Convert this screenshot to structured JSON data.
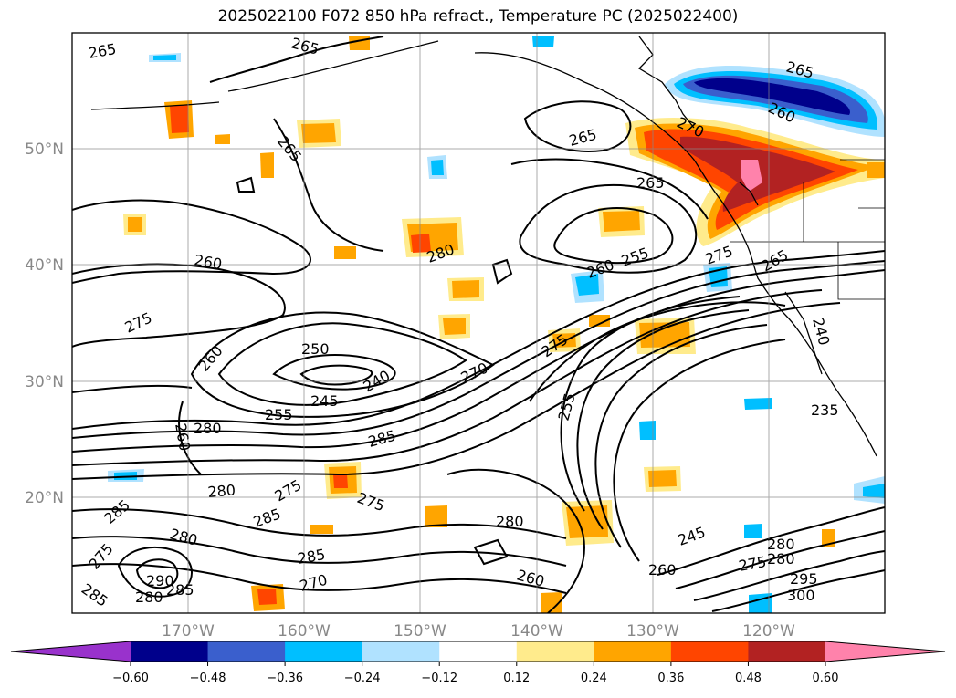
{
  "title": "2025022100 F072 850 hPa refract., Temperature PC (2025022400)",
  "lat_labels": [
    "50°N",
    "40°N",
    "30°N",
    "20°N"
  ],
  "lon_labels": [
    "170°W",
    "160°W",
    "150°W",
    "140°W",
    "130°W",
    "120°W"
  ],
  "colorbar": {
    "tick_labels": [
      "−0.60",
      "−0.48",
      "−0.36",
      "−0.24",
      "−0.12",
      "0.12",
      "0.24",
      "0.36",
      "0.48",
      "0.60"
    ],
    "colors": [
      "#9932cc",
      "#00008b",
      "#3a5fcd",
      "#00bfff",
      "#b0e2ff",
      "#ffffff",
      "#ffeb8c",
      "#ffa500",
      "#ff4500",
      "#b22222",
      "#ff82ab"
    ]
  },
  "contour_labels": [
    "265",
    "265",
    "265",
    "265",
    "265",
    "260",
    "275",
    "260",
    "250",
    "240",
    "245",
    "255",
    "280",
    "260",
    "270",
    "285",
    "280",
    "275",
    "285",
    "275",
    "280",
    "285",
    "285",
    "290",
    "280",
    "285",
    "275",
    "270",
    "280",
    "285",
    "260",
    "255",
    "260",
    "255",
    "275",
    "265",
    "240",
    "235",
    "245",
    "260",
    "280",
    "275",
    "280",
    "295",
    "300",
    "265",
    "260",
    "270",
    "275",
    "280"
  ]
}
